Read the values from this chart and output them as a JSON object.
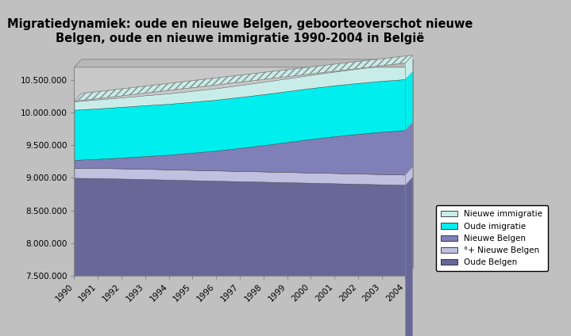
{
  "title": "Migratiedynamiek: oude en nieuwe Belgen, geboorteoverschot nieuwe\nBelgen, oude en nieuwe immigratie 1990-2004 in België",
  "years": [
    1990,
    1991,
    1992,
    1993,
    1994,
    1995,
    1996,
    1997,
    1998,
    1999,
    2000,
    2001,
    2002,
    2003,
    2004
  ],
  "oude_belgen": [
    9000000,
    8995000,
    8988000,
    8980000,
    8972000,
    8963000,
    8955000,
    8947000,
    8940000,
    8932000,
    8924000,
    8916000,
    8908000,
    8900000,
    8892000
  ],
  "plus_nieuwe_belgen": [
    155000,
    156000,
    157000,
    158000,
    158000,
    158000,
    158000,
    157000,
    157000,
    157000,
    157000,
    157000,
    157000,
    157000,
    157000
  ],
  "nieuwe_belgen": [
    120000,
    140000,
    165000,
    195000,
    225000,
    265000,
    305000,
    355000,
    405000,
    460000,
    515000,
    565000,
    610000,
    650000,
    685000
  ],
  "oude_imigratie": [
    770000,
    775000,
    780000,
    782000,
    782000,
    782000,
    782000,
    782000,
    782000,
    782000,
    782000,
    782000,
    782000,
    782000,
    782000
  ],
  "nieuwe_immigratie": [
    130000,
    137000,
    144000,
    152000,
    160000,
    168000,
    176000,
    183000,
    190000,
    196000,
    202000,
    210000,
    220000,
    232000,
    248000
  ],
  "colors": {
    "oude_belgen": "#686898",
    "plus_nieuwe_belgen": "#C0C0E0",
    "nieuwe_belgen": "#8080B8",
    "oude_imigratie": "#00EEEE",
    "nieuwe_immigratie": "#C8EDE8"
  },
  "legend_labels": [
    "Nieuwe immigratie",
    "Oude imigratie",
    "Nieuwe Belgen",
    "°+ Nieuwe Belgen",
    "Oude Belgen"
  ],
  "ylim": [
    7500000,
    10700000
  ],
  "yticks": [
    7500000,
    8000000,
    8500000,
    9000000,
    9500000,
    10000000,
    10500000
  ],
  "background_color": "#C0C0C0",
  "plot_bg_color": "#C8C8C8",
  "wall_color": "#B8B8B8",
  "title_fontsize": 10.5
}
